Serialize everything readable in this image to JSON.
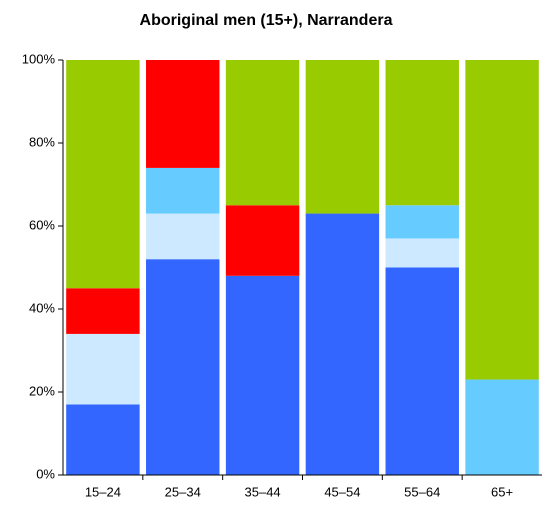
{
  "chart_data": {
    "type": "stacked_bar",
    "title": "Aboriginal men (15+), Narrandera",
    "categories": [
      "15–24",
      "25–34",
      "35–44",
      "45–54",
      "55–64",
      "65+"
    ],
    "series": [
      {
        "color": "#3366ff",
        "values": [
          17,
          52,
          48,
          63,
          50,
          0
        ]
      },
      {
        "color": "#cce9ff",
        "values": [
          17,
          11,
          0,
          0,
          7,
          0
        ]
      },
      {
        "color": "#66ccff",
        "values": [
          0,
          11,
          0,
          0,
          8,
          23
        ]
      },
      {
        "color": "#ff0000",
        "values": [
          11,
          26,
          17,
          0,
          0,
          0
        ]
      },
      {
        "color": "#99cc00",
        "values": [
          55,
          0,
          35,
          37,
          35,
          77
        ]
      }
    ],
    "ylim": [
      0,
      100
    ],
    "yticks": [
      {
        "value": 0,
        "label": "0%"
      },
      {
        "value": 20,
        "label": "20%"
      },
      {
        "value": 40,
        "label": "40%"
      },
      {
        "value": 60,
        "label": "60%"
      },
      {
        "value": 80,
        "label": "80%"
      },
      {
        "value": 100,
        "label": "100%"
      }
    ]
  }
}
